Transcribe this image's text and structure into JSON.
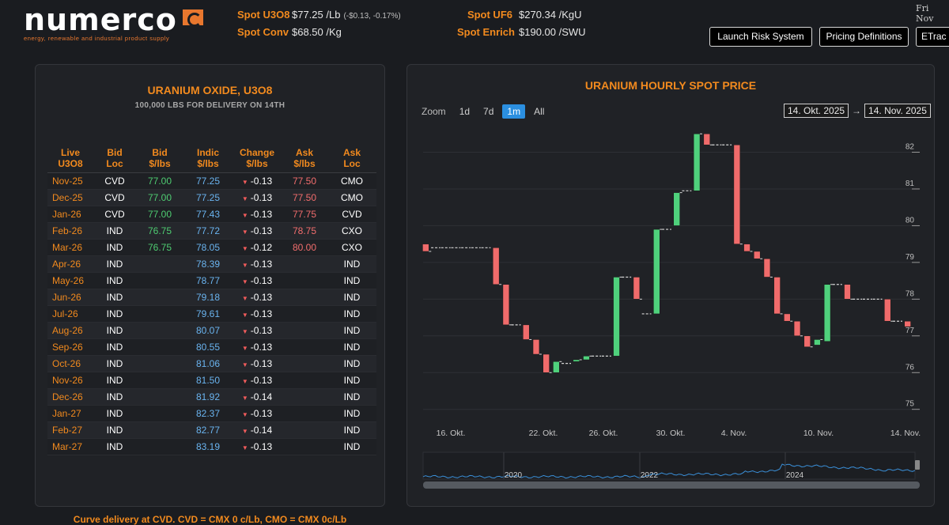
{
  "brand": {
    "name": "numerco",
    "tagline": "energy, renewable and industrial product supply"
  },
  "header": {
    "spots": [
      {
        "label": "Spot U3O8",
        "value": "$77.25 /Lb",
        "change": "(-$0.13, -0.17%)"
      },
      {
        "label": "Spot Conv",
        "value": "$68.50 /Kg",
        "change": ""
      },
      {
        "label": "Spot UF6",
        "value": "$270.34 /KgU",
        "change": ""
      },
      {
        "label": "Spot Enrich",
        "value": "$190.00 /SWU",
        "change": ""
      }
    ],
    "date_text": "Fri Nov",
    "buttons": [
      "Launch Risk System",
      "Pricing Definitions",
      "ETrac"
    ]
  },
  "curve_panel": {
    "title": "URANIUM OXIDE, U3O8",
    "subtitle": "100,000 LBS FOR DELIVERY ON 14TH",
    "columns": [
      "Live\nU3O8",
      "Bid\nLoc",
      "Bid\n$/lbs",
      "Indic\n$/lbs",
      "Change\n$/lbs",
      "Ask\n$/lbs",
      "Ask\nLoc"
    ],
    "rows": [
      [
        "Nov-25",
        "CVD",
        "77.00",
        "77.25",
        "-0.13",
        "77.50",
        "CMO"
      ],
      [
        "Dec-25",
        "CVD",
        "77.00",
        "77.25",
        "-0.13",
        "77.50",
        "CMO"
      ],
      [
        "Jan-26",
        "CVD",
        "77.00",
        "77.43",
        "-0.13",
        "77.75",
        "CVD"
      ],
      [
        "Feb-26",
        "IND",
        "76.75",
        "77.72",
        "-0.13",
        "78.75",
        "CXO"
      ],
      [
        "Mar-26",
        "IND",
        "76.75",
        "78.05",
        "-0.12",
        "80.00",
        "CXO"
      ],
      [
        "Apr-26",
        "IND",
        "",
        "78.39",
        "-0.13",
        "",
        "IND"
      ],
      [
        "May-26",
        "IND",
        "",
        "78.77",
        "-0.13",
        "",
        "IND"
      ],
      [
        "Jun-26",
        "IND",
        "",
        "79.18",
        "-0.13",
        "",
        "IND"
      ],
      [
        "Jul-26",
        "IND",
        "",
        "79.61",
        "-0.13",
        "",
        "IND"
      ],
      [
        "Aug-26",
        "IND",
        "",
        "80.07",
        "-0.13",
        "",
        "IND"
      ],
      [
        "Sep-26",
        "IND",
        "",
        "80.55",
        "-0.13",
        "",
        "IND"
      ],
      [
        "Oct-26",
        "IND",
        "",
        "81.06",
        "-0.13",
        "",
        "IND"
      ],
      [
        "Nov-26",
        "IND",
        "",
        "81.50",
        "-0.13",
        "",
        "IND"
      ],
      [
        "Dec-26",
        "IND",
        "",
        "81.92",
        "-0.14",
        "",
        "IND"
      ],
      [
        "Jan-27",
        "IND",
        "",
        "82.37",
        "-0.13",
        "",
        "IND"
      ],
      [
        "Feb-27",
        "IND",
        "",
        "82.77",
        "-0.14",
        "",
        "IND"
      ],
      [
        "Mar-27",
        "IND",
        "",
        "83.19",
        "-0.13",
        "",
        "IND"
      ]
    ],
    "footnote": "Curve delivery at CVD. CVD = CMX 0 c/Lb, CMO = CMX 0c/Lb"
  },
  "chart_panel": {
    "title": "URANIUM HOURLY SPOT PRICE",
    "zoom_label": "Zoom",
    "zoom_options": [
      "1d",
      "7d",
      "1m",
      "All"
    ],
    "zoom_selected": "1m",
    "range_from": "14. Okt. 2025",
    "range_to": "14. Nov. 2025",
    "range_arrow": "→"
  },
  "chart_data": {
    "type": "candlestick",
    "y_ticks": [
      75,
      76,
      77,
      78,
      79,
      80,
      81,
      82
    ],
    "ylim": [
      74.8,
      82.7
    ],
    "x_tick_labels": [
      "16. Okt.",
      "22. Okt.",
      "26. Okt.",
      "30. Okt.",
      "4. Nov.",
      "10. Nov.",
      "14. Nov."
    ],
    "candles": [
      {
        "o": 79.5,
        "c": 79.3
      },
      {
        "o": 79.4,
        "c": 79.4
      },
      {
        "o": 79.4,
        "c": 79.4
      },
      {
        "o": 79.4,
        "c": 79.4
      },
      {
        "o": 79.4,
        "c": 79.4
      },
      {
        "o": 79.4,
        "c": 79.4
      },
      {
        "o": 79.4,
        "c": 79.4
      },
      {
        "o": 79.4,
        "c": 78.4
      },
      {
        "o": 78.4,
        "c": 77.3
      },
      {
        "o": 77.3,
        "c": 77.3
      },
      {
        "o": 77.3,
        "c": 76.9
      },
      {
        "o": 76.9,
        "c": 76.5
      },
      {
        "o": 76.5,
        "c": 76.0
      },
      {
        "o": 76.0,
        "c": 76.3
      },
      {
        "o": 76.25,
        "c": 76.25
      },
      {
        "o": 76.3,
        "c": 76.35
      },
      {
        "o": 76.35,
        "c": 76.45
      },
      {
        "o": 76.45,
        "c": 76.45
      },
      {
        "o": 76.45,
        "c": 76.45
      },
      {
        "o": 76.45,
        "c": 78.6
      },
      {
        "o": 78.6,
        "c": 78.6
      },
      {
        "o": 78.6,
        "c": 78.0
      },
      {
        "o": 77.6,
        "c": 77.6
      },
      {
        "o": 77.6,
        "c": 79.9
      },
      {
        "o": 79.9,
        "c": 79.9
      },
      {
        "o": 80.0,
        "c": 80.9
      },
      {
        "o": 80.95,
        "c": 80.95
      },
      {
        "o": 80.95,
        "c": 82.5
      },
      {
        "o": 82.5,
        "c": 82.2
      },
      {
        "o": 82.2,
        "c": 82.2
      },
      {
        "o": 82.2,
        "c": 82.2
      },
      {
        "o": 82.2,
        "c": 79.5
      },
      {
        "o": 79.5,
        "c": 79.3
      },
      {
        "o": 79.3,
        "c": 79.1
      },
      {
        "o": 79.1,
        "c": 78.6
      },
      {
        "o": 78.6,
        "c": 77.6
      },
      {
        "o": 77.6,
        "c": 77.4
      },
      {
        "o": 77.4,
        "c": 77.0
      },
      {
        "o": 77.0,
        "c": 76.7
      },
      {
        "o": 76.75,
        "c": 76.9
      },
      {
        "o": 76.85,
        "c": 78.4
      },
      {
        "o": 78.4,
        "c": 78.4
      },
      {
        "o": 78.4,
        "c": 78.0
      },
      {
        "o": 78.0,
        "c": 78.0
      },
      {
        "o": 78.0,
        "c": 78.0
      },
      {
        "o": 78.0,
        "c": 78.0
      },
      {
        "o": 78.0,
        "c": 77.4
      },
      {
        "o": 77.4,
        "c": 77.4
      },
      {
        "o": 77.4,
        "c": 77.25
      }
    ],
    "navigator_labels": [
      "2020",
      "2022",
      "2024"
    ],
    "colors": {
      "up": "#4fd17c",
      "down": "#f06b6b",
      "grid": "#2e3035",
      "navigator_line": "#3a8fd8"
    }
  }
}
